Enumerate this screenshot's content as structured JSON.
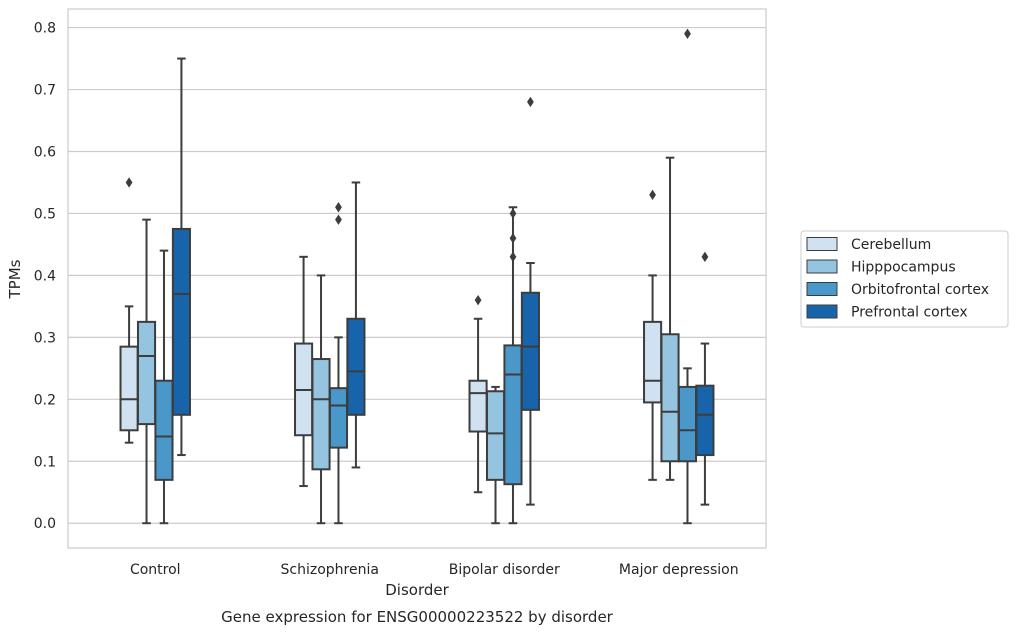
{
  "caption": "Gene expression for ENSG00000223522 by disorder",
  "chart_data": {
    "type": "box",
    "xlabel": "Disorder",
    "ylabel": "TPMs",
    "ylim": [
      -0.04,
      0.83
    ],
    "yticks": [
      0.0,
      0.1,
      0.2,
      0.3,
      0.4,
      0.5,
      0.6,
      0.7,
      0.8
    ],
    "ytick_labels": [
      "0.0",
      "0.1",
      "0.2",
      "0.3",
      "0.4",
      "0.5",
      "0.6",
      "0.7",
      "0.8"
    ],
    "grid": true,
    "legend_position": "right",
    "categories": [
      "Control",
      "Schizophrenia",
      "Bipolar disorder",
      "Major depression"
    ],
    "series": [
      {
        "name": "Cerebellum",
        "color": "#d0e1f2",
        "boxes": [
          {
            "whislo": 0.13,
            "q1": 0.15,
            "med": 0.2,
            "q3": 0.285,
            "whishi": 0.35,
            "fliers": [
              0.55
            ]
          },
          {
            "whislo": 0.06,
            "q1": 0.142,
            "med": 0.215,
            "q3": 0.29,
            "whishi": 0.43,
            "fliers": []
          },
          {
            "whislo": 0.05,
            "q1": 0.148,
            "med": 0.21,
            "q3": 0.23,
            "whishi": 0.33,
            "fliers": [
              0.36
            ]
          },
          {
            "whislo": 0.07,
            "q1": 0.195,
            "med": 0.23,
            "q3": 0.325,
            "whishi": 0.4,
            "fliers": [
              0.53
            ]
          }
        ]
      },
      {
        "name": "Hipppocampus",
        "color": "#94c4df",
        "boxes": [
          {
            "whislo": 0.0,
            "q1": 0.16,
            "med": 0.27,
            "q3": 0.325,
            "whishi": 0.49,
            "fliers": []
          },
          {
            "whislo": 0.0,
            "q1": 0.087,
            "med": 0.2,
            "q3": 0.265,
            "whishi": 0.4,
            "fliers": []
          },
          {
            "whislo": 0.0,
            "q1": 0.07,
            "med": 0.145,
            "q3": 0.213,
            "whishi": 0.22,
            "fliers": []
          },
          {
            "whislo": 0.07,
            "q1": 0.1,
            "med": 0.18,
            "q3": 0.305,
            "whishi": 0.59,
            "fliers": []
          }
        ]
      },
      {
        "name": "Orbitofrontal cortex",
        "color": "#4a98c9",
        "boxes": [
          {
            "whislo": 0.0,
            "q1": 0.07,
            "med": 0.14,
            "q3": 0.23,
            "whishi": 0.44,
            "fliers": []
          },
          {
            "whislo": 0.0,
            "q1": 0.122,
            "med": 0.19,
            "q3": 0.218,
            "whishi": 0.3,
            "fliers": [
              0.49,
              0.51
            ]
          },
          {
            "whislo": 0.0,
            "q1": 0.063,
            "med": 0.24,
            "q3": 0.287,
            "whishi": 0.51,
            "fliers": [
              0.43,
              0.46,
              0.5
            ]
          },
          {
            "whislo": 0.0,
            "q1": 0.1,
            "med": 0.15,
            "q3": 0.22,
            "whishi": 0.25,
            "fliers": [
              0.79
            ]
          }
        ]
      },
      {
        "name": "Prefrontal cortex",
        "color": "#1764ab",
        "boxes": [
          {
            "whislo": 0.11,
            "q1": 0.175,
            "med": 0.37,
            "q3": 0.475,
            "whishi": 0.75,
            "fliers": []
          },
          {
            "whislo": 0.09,
            "q1": 0.175,
            "med": 0.245,
            "q3": 0.33,
            "whishi": 0.55,
            "fliers": []
          },
          {
            "whislo": 0.03,
            "q1": 0.183,
            "med": 0.285,
            "q3": 0.372,
            "whishi": 0.42,
            "fliers": [
              0.68
            ]
          },
          {
            "whislo": 0.03,
            "q1": 0.11,
            "med": 0.175,
            "q3": 0.222,
            "whishi": 0.29,
            "fliers": [
              0.43
            ]
          }
        ]
      }
    ]
  }
}
